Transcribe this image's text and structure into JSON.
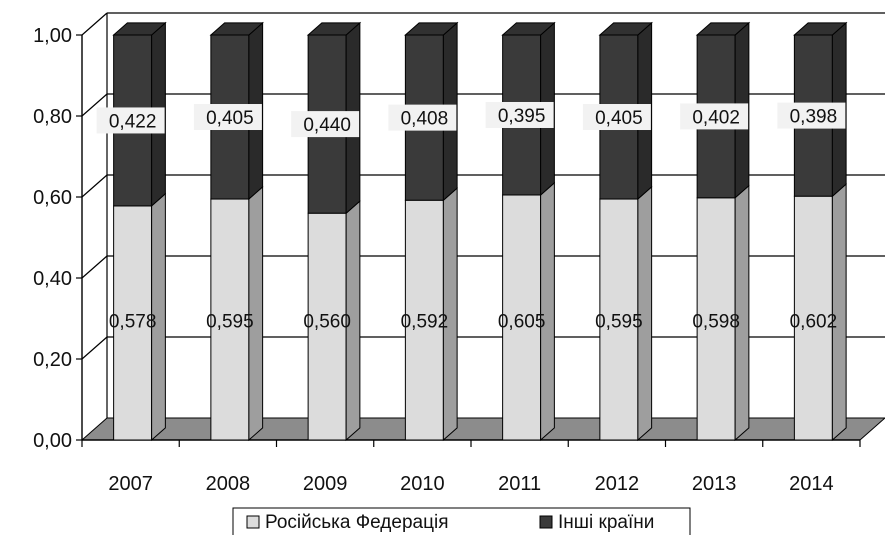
{
  "chart_data": {
    "type": "bar",
    "stacked": true,
    "three_d": true,
    "categories": [
      "2007",
      "2008",
      "2009",
      "2010",
      "2011",
      "2012",
      "2013",
      "2014"
    ],
    "series": [
      {
        "name": "Російська Федерація",
        "values": [
          0.578,
          0.595,
          0.56,
          0.592,
          0.605,
          0.595,
          0.598,
          0.602
        ],
        "labels": [
          "0,578",
          "0,595",
          "0,560",
          "0,592",
          "0,605",
          "0,595",
          "0,598",
          "0,602"
        ],
        "color": "#dcdcdc"
      },
      {
        "name": "Інші країни",
        "values": [
          0.422,
          0.405,
          0.44,
          0.408,
          0.395,
          0.405,
          0.402,
          0.398
        ],
        "labels": [
          "0,422",
          "0,405",
          "0,440",
          "0,408",
          "0,395",
          "0,405",
          "0,402",
          "0,398"
        ],
        "color": "#3a3a3a"
      }
    ],
    "ylim": [
      0,
      1
    ],
    "yticks": [
      0,
      0.2,
      0.4,
      0.6,
      0.8,
      1.0
    ],
    "ytick_labels": [
      "0,00",
      "0,20",
      "0,40",
      "0,60",
      "0,80",
      "1,00"
    ],
    "grid": true,
    "legend_position": "bottom",
    "floor_color": "#8c8c8c"
  }
}
